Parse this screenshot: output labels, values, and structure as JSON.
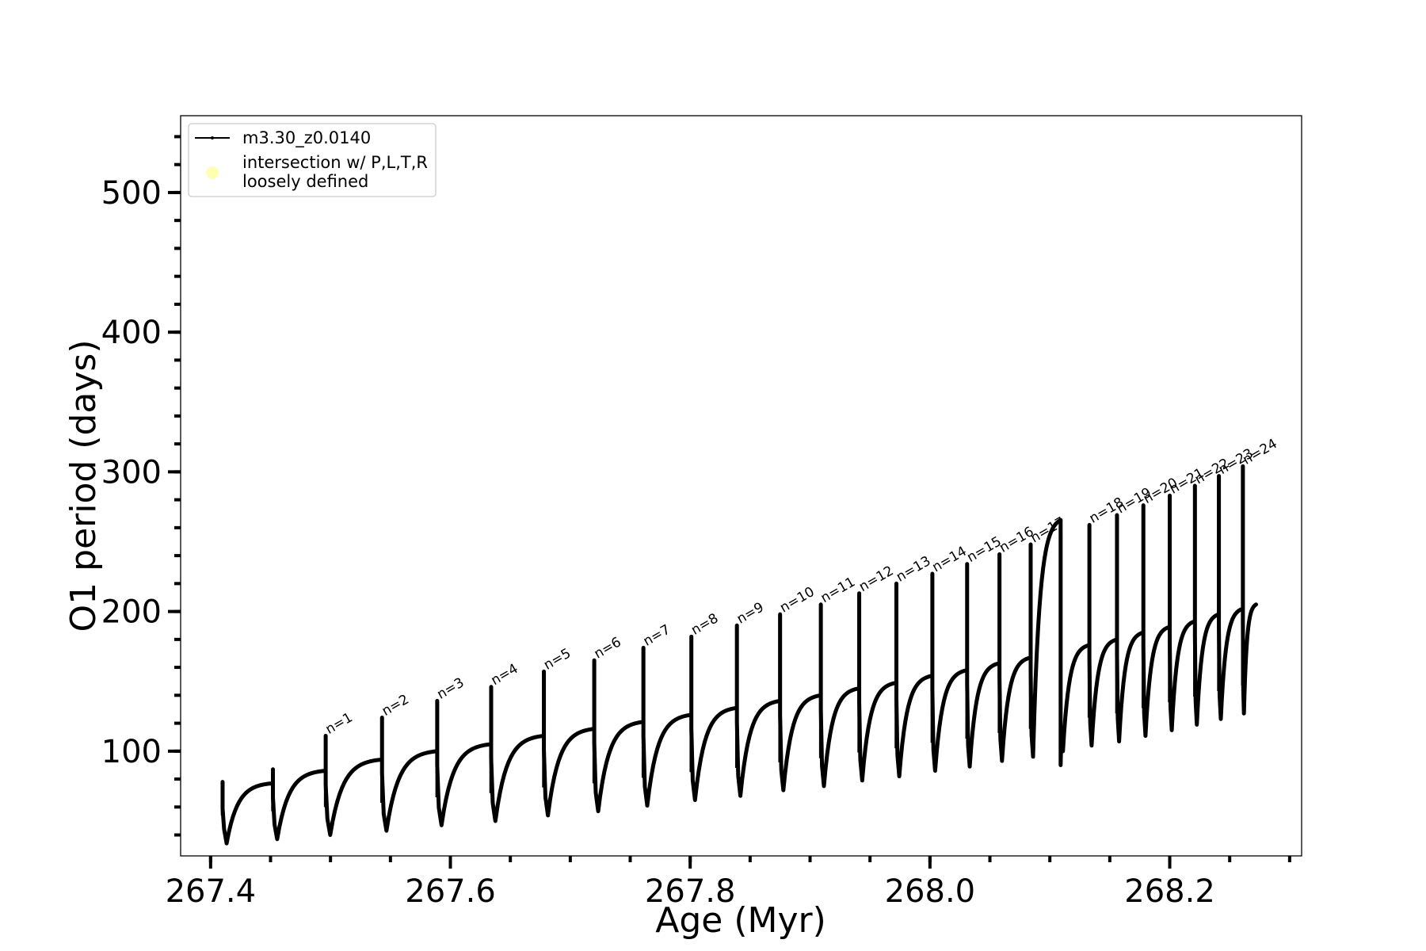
{
  "chart_data": {
    "type": "line",
    "title": "",
    "xlabel": "Age (Myr)",
    "ylabel": "O1 period (days)",
    "xlim": [
      267.375,
      268.31
    ],
    "ylim": [
      25,
      555
    ],
    "xticks": [
      267.4,
      267.6,
      267.8,
      268.0,
      268.2
    ],
    "xtick_labels": [
      "267.4",
      "267.6",
      "267.8",
      "268.0",
      "268.2"
    ],
    "x_minor_step": 0.05,
    "yticks": [
      100,
      200,
      300,
      400,
      500
    ],
    "ytick_labels": [
      "100",
      "200",
      "300",
      "400",
      "500"
    ],
    "y_minor_step": 20,
    "grid": false,
    "legend": {
      "placement": "upper-left",
      "entries": [
        {
          "label": "m3.30_z0.0140",
          "marker": "line-with-dots",
          "color": "#000000"
        },
        {
          "label": "intersection w/ P,L,T,R\nloosely defined",
          "marker": "circle",
          "color": "#ffffb3"
        }
      ]
    },
    "series": [
      {
        "name": "m3.30_z0.0140",
        "color": "#000000",
        "start": {
          "x": 267.41,
          "y": 69
        },
        "end": {
          "x": 268.272,
          "y": 205
        },
        "pulses": [
          {
            "x": 267.41,
            "peak": 78,
            "dip": 34,
            "pre": 69
          },
          {
            "x": 267.452,
            "peak": 87,
            "dip": 37,
            "pre": 77
          },
          {
            "x": 267.496,
            "peak": 111,
            "dip": 40,
            "pre": 86,
            "label": "n=1"
          },
          {
            "x": 267.543,
            "peak": 124,
            "dip": 43,
            "pre": 94,
            "label": "n=2"
          },
          {
            "x": 267.589,
            "peak": 136,
            "dip": 47,
            "pre": 100,
            "label": "n=3"
          },
          {
            "x": 267.634,
            "peak": 146,
            "dip": 50,
            "pre": 105,
            "label": "n=4"
          },
          {
            "x": 267.678,
            "peak": 157,
            "dip": 54,
            "pre": 111,
            "label": "n=5"
          },
          {
            "x": 267.72,
            "peak": 165,
            "dip": 57,
            "pre": 116,
            "label": "n=6"
          },
          {
            "x": 267.761,
            "peak": 174,
            "dip": 61,
            "pre": 121,
            "label": "n=7"
          },
          {
            "x": 267.801,
            "peak": 182,
            "dip": 65,
            "pre": 126,
            "label": "n=8"
          },
          {
            "x": 267.839,
            "peak": 190,
            "dip": 68,
            "pre": 131,
            "label": "n=9"
          },
          {
            "x": 267.875,
            "peak": 198,
            "dip": 72,
            "pre": 136,
            "label": "n=10"
          },
          {
            "x": 267.909,
            "peak": 205,
            "dip": 75,
            "pre": 140,
            "label": "n=11"
          },
          {
            "x": 267.941,
            "peak": 213,
            "dip": 79,
            "pre": 145,
            "label": "n=12"
          },
          {
            "x": 267.972,
            "peak": 220,
            "dip": 82,
            "pre": 149,
            "label": "n=13"
          },
          {
            "x": 268.002,
            "peak": 227,
            "dip": 86,
            "pre": 154,
            "label": "n=14"
          },
          {
            "x": 268.031,
            "peak": 234,
            "dip": 89,
            "pre": 158,
            "label": "n=15"
          },
          {
            "x": 268.058,
            "peak": 241,
            "dip": 93,
            "pre": 163,
            "label": "n=16"
          },
          {
            "x": 268.084,
            "peak": 248,
            "dip": 96,
            "pre": 167,
            "label": "n=17"
          },
          {
            "x": 268.109,
            "peak": 255,
            "dip": 100
          },
          {
            "x": 268.133,
            "peak": 262,
            "dip": 104,
            "pre": 176,
            "label": "n=18"
          },
          {
            "x": 268.156,
            "peak": 269,
            "dip": 107,
            "pre": 180,
            "label": "n=19"
          },
          {
            "x": 268.178,
            "peak": 276,
            "dip": 111,
            "pre": 185,
            "label": "n=20"
          },
          {
            "x": 268.2,
            "peak": 283,
            "dip": 115,
            "pre": 189,
            "label": "n=21"
          },
          {
            "x": 268.221,
            "peak": 290,
            "dip": 119,
            "pre": 193,
            "label": "n=22"
          },
          {
            "x": 268.241,
            "peak": 297,
            "dip": 123,
            "pre": 198,
            "label": "n=23"
          },
          {
            "x": 268.261,
            "peak": 304,
            "dip": 127,
            "pre": 202,
            "label": "n=24"
          }
        ]
      }
    ]
  }
}
